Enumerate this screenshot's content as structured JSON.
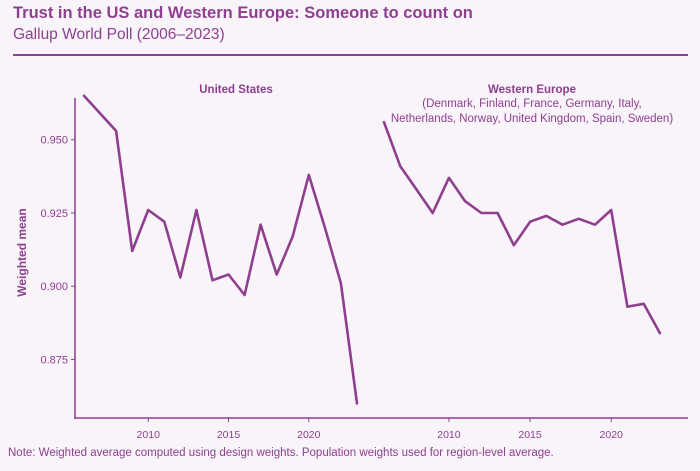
{
  "title": "Trust in the US and Western Europe: Someone to count on",
  "subtitle": "Gallup World Poll (2006–2023)",
  "note": "Note: Weighted average computed using design weights. Population weights used for region-level average.",
  "colors": {
    "accent": "#8e3f8e",
    "background": "#f8f4fa"
  },
  "chart_data": {
    "type": "line",
    "ylabel": "Weighted mean",
    "ylim": [
      0.855,
      0.968
    ],
    "y_ticks": [
      0.875,
      0.9,
      0.925,
      0.95
    ],
    "y_tick_labels": [
      "0.875",
      "0.900",
      "0.925",
      "0.950"
    ],
    "xlim": [
      2006,
      2023.5
    ],
    "x_ticks": [
      2010,
      2015,
      2020
    ],
    "x_tick_labels": [
      "2010",
      "2015",
      "2020"
    ],
    "panels": [
      {
        "title": "United States",
        "subtitle_lines": [],
        "series": [
          {
            "name": "United States",
            "x": [
              2006,
              2008,
              2009,
              2010,
              2011,
              2012,
              2013,
              2014,
              2015,
              2016,
              2017,
              2018,
              2019,
              2020,
              2021,
              2022,
              2023
            ],
            "values": [
              0.965,
              0.953,
              0.912,
              0.926,
              0.922,
              0.903,
              0.926,
              0.902,
              0.904,
              0.897,
              0.921,
              0.904,
              0.917,
              0.938,
              0.92,
              0.901,
              0.86
            ]
          }
        ]
      },
      {
        "title": "Western Europe",
        "subtitle_lines": [
          "(Denmark, Finland, France, Germany, Italy,",
          "Netherlands, Norway, United Kingdom, Spain, Sweden)"
        ],
        "series": [
          {
            "name": "Western Europe",
            "x": [
              2006,
              2007,
              2008,
              2009,
              2010,
              2011,
              2012,
              2013,
              2014,
              2015,
              2016,
              2017,
              2018,
              2019,
              2020,
              2021,
              2022,
              2023
            ],
            "values": [
              0.956,
              0.941,
              0.933,
              0.925,
              0.937,
              0.929,
              0.925,
              0.925,
              0.914,
              0.922,
              0.924,
              0.921,
              0.923,
              0.921,
              0.926,
              0.893,
              0.894,
              0.884
            ]
          }
        ]
      }
    ]
  }
}
